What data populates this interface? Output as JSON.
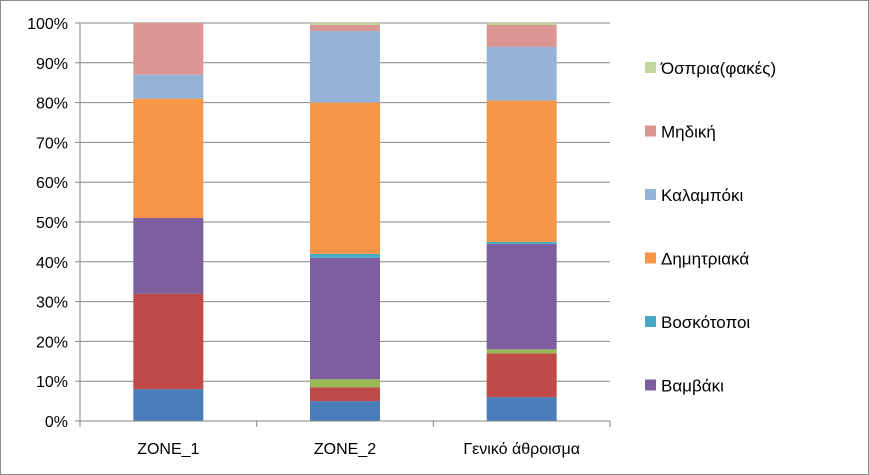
{
  "chart_data": {
    "type": "bar",
    "stacked": true,
    "percent": true,
    "categories": [
      "ZONE_1",
      "ZONE_2",
      "Γενικό άθροισμα"
    ],
    "y_ticks": [
      "0%",
      "10%",
      "20%",
      "30%",
      "40%",
      "50%",
      "60%",
      "70%",
      "80%",
      "90%",
      "100%"
    ],
    "ylim": [
      0,
      100
    ],
    "grid": true,
    "legend_position": "right",
    "series": [
      {
        "name": "",
        "color": "#4a7ebb",
        "values": [
          8,
          5,
          6
        ]
      },
      {
        "name": "",
        "color": "#be4b48",
        "values": [
          24,
          3.5,
          11
        ]
      },
      {
        "name": "",
        "color": "#98b954",
        "values": [
          0,
          2,
          1
        ]
      },
      {
        "name": "Βαμβάκι",
        "color": "#7d5fa0",
        "values": [
          19,
          30.5,
          26.5
        ]
      },
      {
        "name": "Βοσκότοποι",
        "color": "#46aac4",
        "values": [
          0,
          1,
          0.5
        ]
      },
      {
        "name": "Δημητριακά",
        "color": "#f79646",
        "values": [
          30,
          38,
          35.5
        ]
      },
      {
        "name": "Καλαμπόκι",
        "color": "#95b3d7",
        "values": [
          6,
          18,
          13.5
        ]
      },
      {
        "name": "Μηδική",
        "color": "#d99694",
        "values": [
          13,
          1.5,
          5.5
        ]
      },
      {
        "name": "Όσπρια(φακές)",
        "color": "#c3d69b",
        "values": [
          0,
          0.5,
          0.5
        ]
      }
    ]
  }
}
